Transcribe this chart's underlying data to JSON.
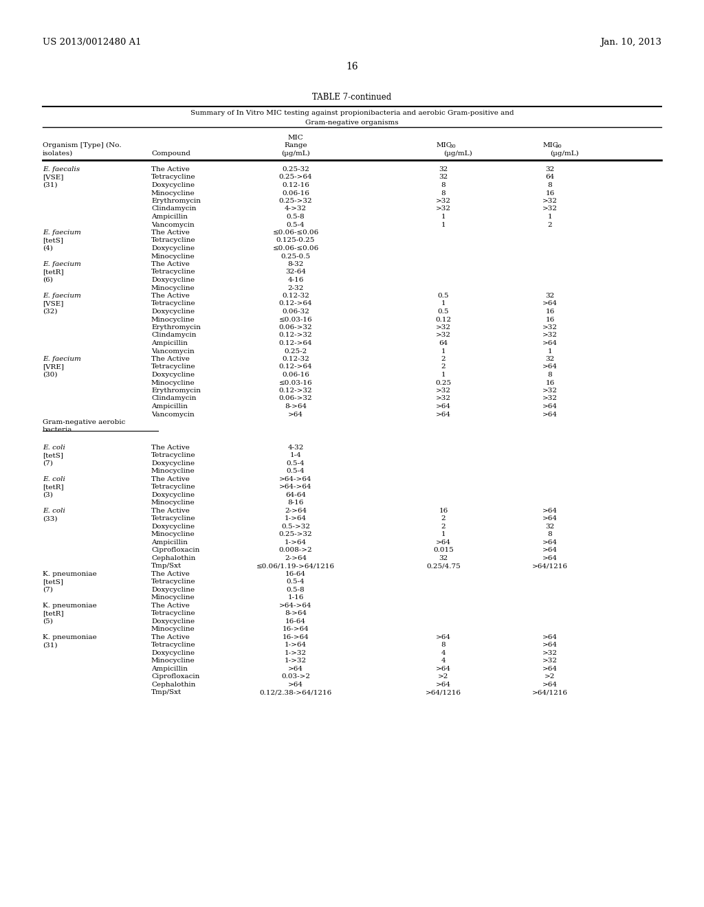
{
  "header_left": "US 2013/0012480 A1",
  "header_right": "Jan. 10, 2013",
  "page_number": "16",
  "table_title": "TABLE 7-continued",
  "table_subtitle1": "Summary of In Vitro MIC testing against propionibacteria and aerobic Gram-positive and",
  "table_subtitle2": "Gram-negative organisms",
  "background_color": "#ffffff",
  "text_color": "#000000",
  "rows": [
    {
      "org": "E. faecalis",
      "org_italic": true,
      "bracket": "[VSE]",
      "bracket_italic": false,
      "paren": "(31)",
      "compounds": [
        {
          "name": "The Active",
          "range": "0.25-32",
          "mic50": "32",
          "mic90": "32"
        },
        {
          "name": "Tetracycline",
          "range": "0.25->64",
          "mic50": "32",
          "mic90": "64"
        },
        {
          "name": "Doxycycline",
          "range": "0.12-16",
          "mic50": "8",
          "mic90": "8"
        },
        {
          "name": "Minocycline",
          "range": "0.06-16",
          "mic50": "8",
          "mic90": "16"
        },
        {
          "name": "Erythromycin",
          "range": "0.25->32",
          "mic50": ">32",
          "mic90": ">32"
        },
        {
          "name": "Clindamycin",
          "range": "4->32",
          "mic50": ">32",
          "mic90": ">32"
        },
        {
          "name": "Ampicillin",
          "range": "0.5-8",
          "mic50": "1",
          "mic90": "1"
        },
        {
          "name": "Vancomycin",
          "range": "0.5-4",
          "mic50": "1",
          "mic90": "2"
        }
      ]
    },
    {
      "org": "E. faecium",
      "org_italic": true,
      "bracket": "[tetS]",
      "bracket_italic": false,
      "paren": "(4)",
      "compounds": [
        {
          "name": "The Active",
          "range": "≤0.06-≤0.06",
          "mic50": "",
          "mic90": ""
        },
        {
          "name": "Tetracycline",
          "range": "0.125-0.25",
          "mic50": "",
          "mic90": ""
        },
        {
          "name": "Doxycycline",
          "range": "≤0.06-≤0.06",
          "mic50": "",
          "mic90": ""
        },
        {
          "name": "Minocycline",
          "range": "0.25-0.5",
          "mic50": "",
          "mic90": ""
        }
      ]
    },
    {
      "org": "E. faecium",
      "org_italic": true,
      "bracket": "[tetR]",
      "bracket_italic": false,
      "paren": "(6)",
      "compounds": [
        {
          "name": "The Active",
          "range": "8-32",
          "mic50": "",
          "mic90": ""
        },
        {
          "name": "Tetracycline",
          "range": "32-64",
          "mic50": "",
          "mic90": ""
        },
        {
          "name": "Doxycycline",
          "range": "4-16",
          "mic50": "",
          "mic90": ""
        },
        {
          "name": "Minocycline",
          "range": "2-32",
          "mic50": "",
          "mic90": ""
        }
      ]
    },
    {
      "org": "E. faecium",
      "org_italic": true,
      "bracket": "[VSE]",
      "bracket_italic": false,
      "paren": "(32)",
      "compounds": [
        {
          "name": "The Active",
          "range": "0.12-32",
          "mic50": "0.5",
          "mic90": "32"
        },
        {
          "name": "Tetracycline",
          "range": "0.12->64",
          "mic50": "1",
          "mic90": ">64"
        },
        {
          "name": "Doxycycline",
          "range": "0.06-32",
          "mic50": "0.5",
          "mic90": "16"
        },
        {
          "name": "Minocycline",
          "range": "≤0.03-16",
          "mic50": "0.12",
          "mic90": "16"
        },
        {
          "name": "Erythromycin",
          "range": "0.06->32",
          "mic50": ">32",
          "mic90": ">32"
        },
        {
          "name": "Clindamycin",
          "range": "0.12->32",
          "mic50": ">32",
          "mic90": ">32"
        },
        {
          "name": "Ampicillin",
          "range": "0.12->64",
          "mic50": "64",
          "mic90": ">64"
        },
        {
          "name": "Vancomycin",
          "range": "0.25-2",
          "mic50": "1",
          "mic90": "1"
        }
      ]
    },
    {
      "org": "E. faecium",
      "org_italic": true,
      "bracket": "[VRE]",
      "bracket_italic": false,
      "paren": "(30)",
      "compounds": [
        {
          "name": "The Active",
          "range": "0.12-32",
          "mic50": "2",
          "mic90": "32"
        },
        {
          "name": "Tetracycline",
          "range": "0.12->64",
          "mic50": "2",
          "mic90": ">64"
        },
        {
          "name": "Doxycycline",
          "range": "0.06-16",
          "mic50": "1",
          "mic90": "8"
        },
        {
          "name": "Minocycline",
          "range": "≤0.03-16",
          "mic50": "0.25",
          "mic90": "16"
        },
        {
          "name": "Erythromycin",
          "range": "0.12->32",
          "mic50": ">32",
          "mic90": ">32"
        },
        {
          "name": "Clindamycin",
          "range": "0.06->32",
          "mic50": ">32",
          "mic90": ">32"
        },
        {
          "name": "Ampicillin",
          "range": "8->64",
          "mic50": ">64",
          "mic90": ">64"
        },
        {
          "name": "Vancomycin",
          "range": ">64",
          "mic50": ">64",
          "mic90": ">64"
        }
      ]
    },
    {
      "org": "SECTION",
      "org_italic": false,
      "bracket": "",
      "bracket_italic": false,
      "paren": "",
      "compounds": []
    },
    {
      "org": "E. coli",
      "org_italic": true,
      "bracket": "[tetS]",
      "bracket_italic": false,
      "paren": "(7)",
      "compounds": [
        {
          "name": "The Active",
          "range": "4-32",
          "mic50": "",
          "mic90": ""
        },
        {
          "name": "Tetracycline",
          "range": "1-4",
          "mic50": "",
          "mic90": ""
        },
        {
          "name": "Doxycycline",
          "range": "0.5-4",
          "mic50": "",
          "mic90": ""
        },
        {
          "name": "Minocycline",
          "range": "0.5-4",
          "mic50": "",
          "mic90": ""
        }
      ]
    },
    {
      "org": "E. coli",
      "org_italic": true,
      "bracket": "[tetR]",
      "bracket_italic": false,
      "paren": "(3)",
      "compounds": [
        {
          "name": "The Active",
          "range": ">64->64",
          "mic50": "",
          "mic90": ""
        },
        {
          "name": "Tetracycline",
          "range": ">64->64",
          "mic50": "",
          "mic90": ""
        },
        {
          "name": "Doxycycline",
          "range": "64-64",
          "mic50": "",
          "mic90": ""
        },
        {
          "name": "Minocycline",
          "range": "8-16",
          "mic50": "",
          "mic90": ""
        }
      ]
    },
    {
      "org": "E. coli",
      "org_italic": true,
      "bracket": "(33)",
      "bracket_italic": false,
      "paren": "",
      "compounds": [
        {
          "name": "The Active",
          "range": "2->64",
          "mic50": "16",
          "mic90": ">64"
        },
        {
          "name": "Tetracycline",
          "range": "1->64",
          "mic50": "2",
          "mic90": ">64"
        },
        {
          "name": "Doxycycline",
          "range": "0.5->32",
          "mic50": "2",
          "mic90": "32"
        },
        {
          "name": "Minocycline",
          "range": "0.25->32",
          "mic50": "1",
          "mic90": "8"
        },
        {
          "name": "Ampicillin",
          "range": "1->64",
          "mic50": ">64",
          "mic90": ">64"
        },
        {
          "name": "Ciprofloxacin",
          "range": "0.008->2",
          "mic50": "0.015",
          "mic90": ">64"
        },
        {
          "name": "Cephalothin",
          "range": "2->64",
          "mic50": "32",
          "mic90": ">64"
        },
        {
          "name": "Tmp/Sxt",
          "range": "≤0.06/1.19->64/1216",
          "mic50": "0.25/4.75",
          "mic90": ">64/1216"
        }
      ]
    },
    {
      "org": "K. pneumoniae",
      "org_italic": false,
      "bracket": "[tetS]",
      "bracket_italic": false,
      "paren": "(7)",
      "compounds": [
        {
          "name": "The Active",
          "range": "16-64",
          "mic50": "",
          "mic90": ""
        },
        {
          "name": "Tetracycline",
          "range": "0.5-4",
          "mic50": "",
          "mic90": ""
        },
        {
          "name": "Doxycycline",
          "range": "0.5-8",
          "mic50": "",
          "mic90": ""
        },
        {
          "name": "Minocycline",
          "range": "1-16",
          "mic50": "",
          "mic90": ""
        }
      ]
    },
    {
      "org": "K. pneumoniae",
      "org_italic": false,
      "bracket": "[tetR]",
      "bracket_italic": false,
      "paren": "(5)",
      "compounds": [
        {
          "name": "The Active",
          "range": ">64->64",
          "mic50": "",
          "mic90": ""
        },
        {
          "name": "Tetracycline",
          "range": "8->64",
          "mic50": "",
          "mic90": ""
        },
        {
          "name": "Doxycycline",
          "range": "16-64",
          "mic50": "",
          "mic90": ""
        },
        {
          "name": "Minocycline",
          "range": "16->64",
          "mic50": "",
          "mic90": ""
        }
      ]
    },
    {
      "org": "K. pneumoniae",
      "org_italic": false,
      "bracket": "(31)",
      "bracket_italic": false,
      "paren": "",
      "compounds": [
        {
          "name": "The Active",
          "range": "16->64",
          "mic50": ">64",
          "mic90": ">64"
        },
        {
          "name": "Tetracycline",
          "range": "1->64",
          "mic50": "8",
          "mic90": ">64"
        },
        {
          "name": "Doxycycline",
          "range": "1->32",
          "mic50": "4",
          "mic90": ">32"
        },
        {
          "name": "Minocycline",
          "range": "1->32",
          "mic50": "4",
          "mic90": ">32"
        },
        {
          "name": "Ampicillin",
          "range": ">64",
          "mic50": ">64",
          "mic90": ">64"
        },
        {
          "name": "Ciprofloxacin",
          "range": "0.03->2",
          "mic50": ">2",
          "mic90": ">2"
        },
        {
          "name": "Cephalothin",
          "range": ">64",
          "mic50": ">64",
          "mic90": ">64"
        },
        {
          "name": "Tmp/Sxt",
          "range": "0.12/2.38->64/1216",
          "mic50": ">64/1216",
          "mic90": ">64/1216"
        }
      ]
    }
  ]
}
